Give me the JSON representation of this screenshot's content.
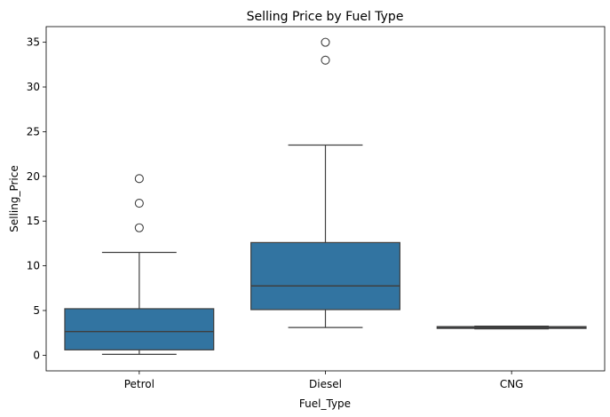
{
  "chart_data": {
    "type": "box",
    "title": "Selling Price by Fuel Type",
    "xlabel": "Fuel_Type",
    "ylabel": "Selling_Price",
    "ylim": [
      -1.75,
      36.75
    ],
    "yticks": [
      0,
      5,
      10,
      15,
      20,
      25,
      30,
      35
    ],
    "grid": false,
    "box_color": "#3274a1",
    "line_color": "#3f3f3f",
    "categories": [
      "Petrol",
      "Diesel",
      "CNG"
    ],
    "boxes": [
      {
        "category": "Petrol",
        "whisker_low": 0.1,
        "q1": 0.6,
        "median": 2.65,
        "q3": 5.2,
        "whisker_high": 11.5,
        "outliers": [
          14.25,
          17.0,
          19.75
        ]
      },
      {
        "category": "Diesel",
        "whisker_low": 3.1,
        "q1": 5.1,
        "median": 7.75,
        "q3": 12.6,
        "whisker_high": 23.5,
        "outliers": [
          33.0,
          35.0
        ]
      },
      {
        "category": "CNG",
        "whisker_low": 2.95,
        "q1": 3.0,
        "median": 3.1,
        "q3": 3.2,
        "whisker_high": 3.25,
        "outliers": []
      }
    ]
  }
}
